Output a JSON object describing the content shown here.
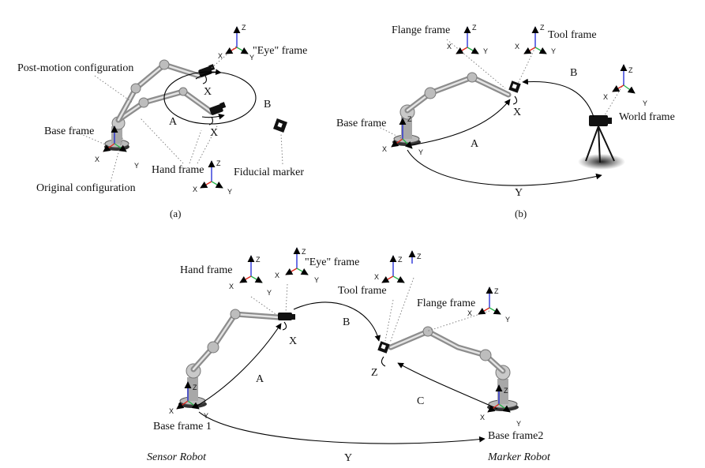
{
  "panel_a": {
    "caption": "(a)",
    "labels": {
      "eye_frame": "\"Eye\" frame",
      "post_motion": "Post-motion configuration",
      "base_frame": "Base frame",
      "hand_frame": "Hand frame",
      "fiducial": "Fiducial marker",
      "original": "Original configuration",
      "A": "A",
      "B": "B",
      "X1": "X",
      "X2": "X"
    }
  },
  "panel_b": {
    "caption": "(b)",
    "labels": {
      "flange_frame": "Flange frame",
      "tool_frame": "Tool frame",
      "base_frame": "Base frame",
      "world_frame": "World frame",
      "A": "A",
      "B": "B",
      "X": "X",
      "Y": "Y"
    }
  },
  "panel_c": {
    "labels": {
      "hand_frame": "Hand frame",
      "eye_frame": "\"Eye\" frame",
      "tool_frame": "Tool frame",
      "flange_frame": "Flange frame",
      "base_frame1": "Base frame 1",
      "base_frame2": "Base frame2",
      "sensor_robot": "Sensor Robot",
      "marker_robot": "Marker Robot",
      "A": "A",
      "B": "B",
      "C": "C",
      "X": "X",
      "Y": "Y",
      "Z": "Z"
    }
  },
  "axis_letters": {
    "x": "X",
    "y": "Y",
    "z": "Z"
  },
  "colors": {
    "x_axis": "#e0261b",
    "y_axis": "#27b44a",
    "z_axis": "#1d27d6"
  }
}
